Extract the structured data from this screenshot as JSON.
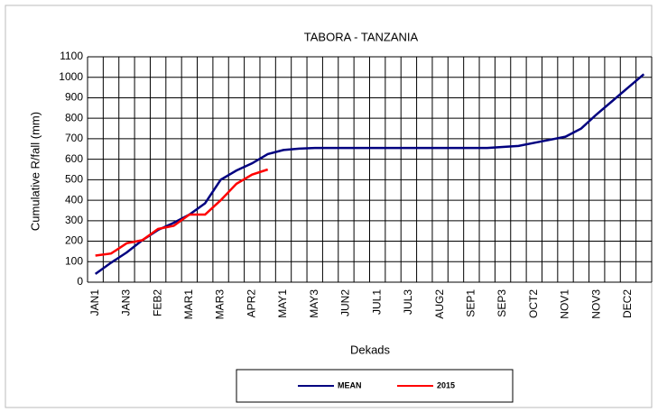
{
  "chart_data": {
    "type": "line",
    "title": "TABORA - TANZANIA",
    "y_label": "Cumulative R/fall (mm)",
    "x_label": "Dekads",
    "categories": [
      "JAN1",
      null,
      "JAN3",
      null,
      "FEB2",
      null,
      "MAR1",
      null,
      "MAR3",
      null,
      "APR2",
      null,
      "MAY1",
      null,
      "MAY3",
      null,
      "JUN2",
      null,
      "JUL1",
      null,
      "JUL3",
      null,
      "AUG2",
      null,
      "SEP1",
      null,
      "SEP3",
      null,
      "OCT2",
      null,
      "NOV1",
      null,
      "NOV3",
      null,
      "DEC2",
      null
    ],
    "series": [
      {
        "name": "MEAN",
        "color": "#000080",
        "values": [
          40,
          95,
          145,
          205,
          255,
          290,
          330,
          385,
          500,
          545,
          580,
          625,
          645,
          652,
          655,
          655,
          655,
          655,
          655,
          655,
          655,
          655,
          655,
          655,
          655,
          655,
          660,
          665,
          680,
          695,
          710,
          750,
          820,
          885,
          950,
          1015
        ]
      },
      {
        "name": "2015",
        "color": "#ff0000",
        "values": [
          130,
          140,
          190,
          205,
          260,
          275,
          330,
          330,
          400,
          480,
          525,
          550,
          null,
          null,
          null,
          null,
          null,
          null,
          null,
          null,
          null,
          null,
          null,
          null,
          null,
          null,
          null,
          null,
          null,
          null,
          null,
          null,
          null,
          null,
          null,
          null
        ]
      }
    ],
    "ylim": [
      0,
      1100
    ],
    "yticks": [
      0,
      100,
      200,
      300,
      400,
      500,
      600,
      700,
      800,
      900,
      1000,
      1100
    ],
    "grid": true
  }
}
